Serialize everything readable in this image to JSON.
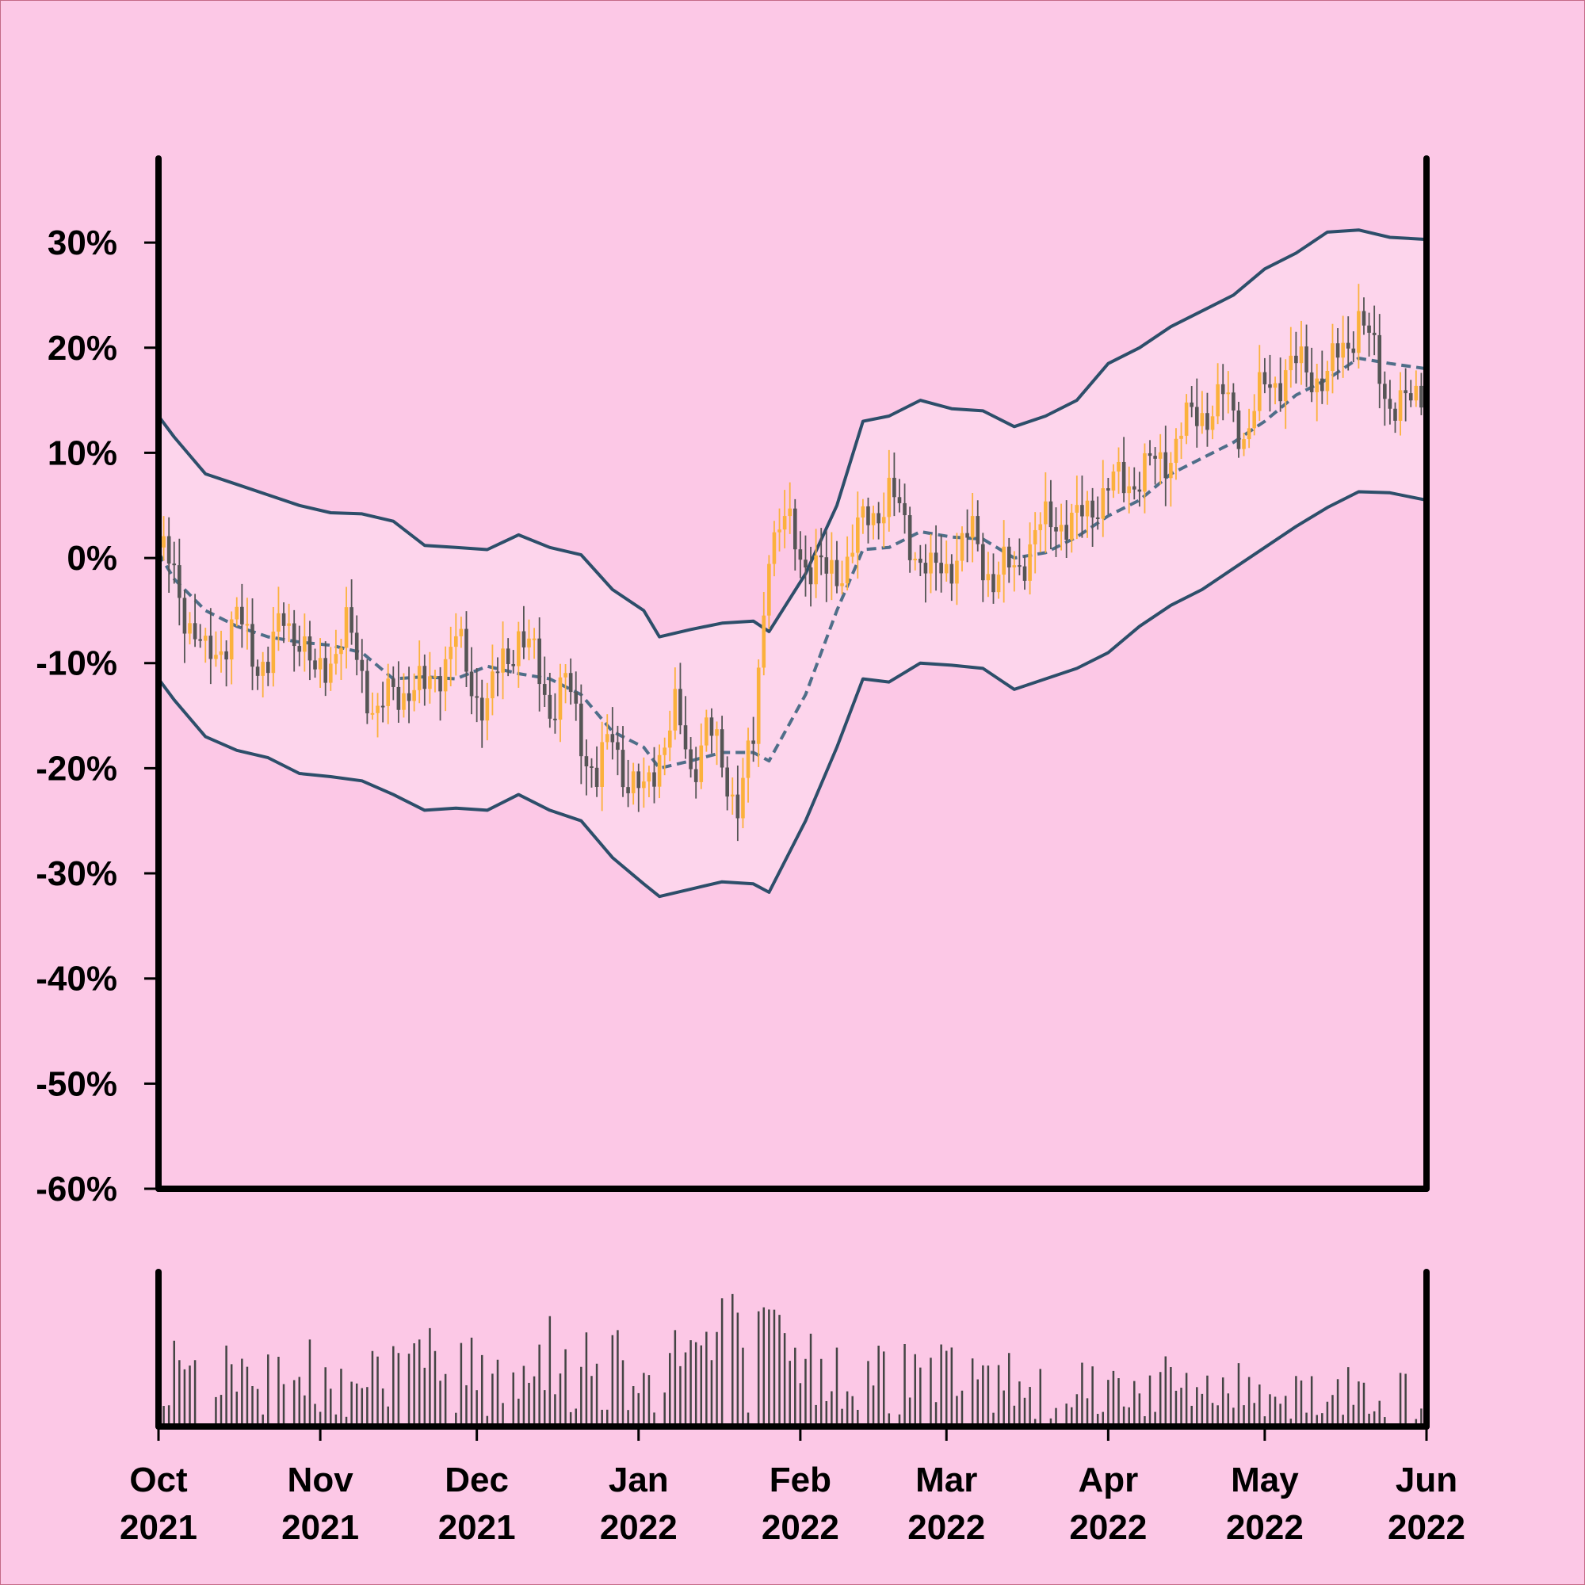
{
  "chart_data": {
    "type": "candlestick",
    "title": "",
    "xlabel": "",
    "ylabel": "",
    "x_range": [
      "2021-10-01",
      "2022-06-01"
    ],
    "ylim": [
      -60,
      38
    ],
    "y_unit": "%",
    "grid": false,
    "legend": "none",
    "y_ticks": [
      {
        "value": 30,
        "label": "30%"
      },
      {
        "value": 20,
        "label": "20%"
      },
      {
        "value": 10,
        "label": "10%"
      },
      {
        "value": 0,
        "label": "0%"
      },
      {
        "value": -10,
        "label": "-10%"
      },
      {
        "value": -20,
        "label": "-20%"
      },
      {
        "value": -30,
        "label": "-30%"
      },
      {
        "value": -40,
        "label": "-40%"
      },
      {
        "value": -50,
        "label": "-50%"
      },
      {
        "value": -60,
        "label": "-60%"
      }
    ],
    "x_ticks": [
      {
        "date": "2021-10-01",
        "month": "Oct",
        "year": "2021"
      },
      {
        "date": "2021-11-01",
        "month": "Nov",
        "year": "2021"
      },
      {
        "date": "2021-12-01",
        "month": "Dec",
        "year": "2021"
      },
      {
        "date": "2022-01-01",
        "month": "Jan",
        "year": "2022"
      },
      {
        "date": "2022-02-01",
        "month": "Feb",
        "year": "2022"
      },
      {
        "date": "2022-03-01",
        "month": "Mar",
        "year": "2022"
      },
      {
        "date": "2022-04-01",
        "month": "Apr",
        "year": "2022"
      },
      {
        "date": "2022-05-01",
        "month": "May",
        "year": "2022"
      },
      {
        "date": "2022-06-01",
        "month": "Jun",
        "year": "2022"
      }
    ],
    "close_path": [
      [
        "2021-10-01",
        1
      ],
      [
        "2021-10-04",
        -2
      ],
      [
        "2021-10-07",
        -6
      ],
      [
        "2021-10-10",
        -10
      ],
      [
        "2021-10-13",
        -8
      ],
      [
        "2021-10-16",
        -6
      ],
      [
        "2021-10-19",
        -9
      ],
      [
        "2021-10-22",
        -10
      ],
      [
        "2021-10-25",
        -6
      ],
      [
        "2021-10-28",
        -7
      ],
      [
        "2021-10-31",
        -12
      ],
      [
        "2021-11-03",
        -9
      ],
      [
        "2021-11-06",
        -7
      ],
      [
        "2021-11-09",
        -11
      ],
      [
        "2021-11-12",
        -15
      ],
      [
        "2021-11-15",
        -13
      ],
      [
        "2021-11-18",
        -12
      ],
      [
        "2021-11-21",
        -13
      ],
      [
        "2021-11-24",
        -10
      ],
      [
        "2021-11-27",
        -8
      ],
      [
        "2021-11-30",
        -12
      ],
      [
        "2021-12-03",
        -14
      ],
      [
        "2021-12-06",
        -10
      ],
      [
        "2021-12-09",
        -7
      ],
      [
        "2021-12-12",
        -10
      ],
      [
        "2021-12-15",
        -14
      ],
      [
        "2021-12-18",
        -12
      ],
      [
        "2021-12-21",
        -17
      ],
      [
        "2021-12-24",
        -21
      ],
      [
        "2021-12-27",
        -17
      ],
      [
        "2021-12-30",
        -21
      ],
      [
        "2022-01-02",
        -23
      ],
      [
        "2022-01-05",
        -18
      ],
      [
        "2022-01-08",
        -15
      ],
      [
        "2022-01-11",
        -20
      ],
      [
        "2022-01-14",
        -16
      ],
      [
        "2022-01-17",
        -20
      ],
      [
        "2022-01-20",
        -23
      ],
      [
        "2022-01-23",
        -18
      ],
      [
        "2022-01-26",
        2
      ],
      [
        "2022-01-29",
        3
      ],
      [
        "2022-02-02",
        0
      ],
      [
        "2022-02-06",
        -2
      ],
      [
        "2022-02-10",
        0
      ],
      [
        "2022-02-14",
        4
      ],
      [
        "2022-02-18",
        6
      ],
      [
        "2022-02-22",
        2
      ],
      [
        "2022-02-26",
        -2
      ],
      [
        "2022-03-02",
        0
      ],
      [
        "2022-03-06",
        2
      ],
      [
        "2022-03-10",
        -2
      ],
      [
        "2022-03-14",
        -1
      ],
      [
        "2022-03-18",
        2
      ],
      [
        "2022-03-22",
        4
      ],
      [
        "2022-03-26",
        3
      ],
      [
        "2022-03-30",
        6
      ],
      [
        "2022-04-03",
        7
      ],
      [
        "2022-04-07",
        8
      ],
      [
        "2022-04-11",
        9
      ],
      [
        "2022-04-15",
        12
      ],
      [
        "2022-04-19",
        14
      ],
      [
        "2022-04-23",
        15
      ],
      [
        "2022-04-27",
        12
      ],
      [
        "2022-05-01",
        16
      ],
      [
        "2022-05-05",
        18
      ],
      [
        "2022-05-09",
        18
      ],
      [
        "2022-05-13",
        17
      ],
      [
        "2022-05-16",
        20
      ],
      [
        "2022-05-19",
        23
      ],
      [
        "2022-05-22",
        19
      ],
      [
        "2022-05-25",
        15
      ],
      [
        "2022-05-28",
        14
      ],
      [
        "2022-06-01",
        17
      ]
    ],
    "bollinger": {
      "upper": [
        [
          "2021-10-01",
          13.5
        ],
        [
          "2021-10-04",
          11.5
        ],
        [
          "2021-10-10",
          8
        ],
        [
          "2021-10-16",
          7
        ],
        [
          "2021-10-22",
          6
        ],
        [
          "2021-10-28",
          5
        ],
        [
          "2021-11-03",
          4.3
        ],
        [
          "2021-11-09",
          4.2
        ],
        [
          "2021-11-15",
          3.5
        ],
        [
          "2021-11-21",
          1.2
        ],
        [
          "2021-11-27",
          1
        ],
        [
          "2021-12-03",
          0.8
        ],
        [
          "2021-12-09",
          2.2
        ],
        [
          "2021-12-15",
          1
        ],
        [
          "2021-12-21",
          0.3
        ],
        [
          "2021-12-27",
          -3
        ],
        [
          "2022-01-02",
          -5
        ],
        [
          "2022-01-05",
          -7.5
        ],
        [
          "2022-01-11",
          -6.8
        ],
        [
          "2022-01-17",
          -6.2
        ],
        [
          "2022-01-23",
          -6
        ],
        [
          "2022-01-26",
          -7
        ],
        [
          "2022-02-02",
          -1.5
        ],
        [
          "2022-02-08",
          5
        ],
        [
          "2022-02-13",
          13
        ],
        [
          "2022-02-18",
          13.5
        ],
        [
          "2022-02-24",
          15
        ],
        [
          "2022-03-02",
          14.2
        ],
        [
          "2022-03-08",
          14
        ],
        [
          "2022-03-14",
          12.5
        ],
        [
          "2022-03-20",
          13.5
        ],
        [
          "2022-03-26",
          15
        ],
        [
          "2022-04-01",
          18.5
        ],
        [
          "2022-04-07",
          20
        ],
        [
          "2022-04-13",
          22
        ],
        [
          "2022-04-19",
          23.5
        ],
        [
          "2022-04-25",
          25
        ],
        [
          "2022-05-01",
          27.5
        ],
        [
          "2022-05-07",
          29
        ],
        [
          "2022-05-13",
          31
        ],
        [
          "2022-05-19",
          31.2
        ],
        [
          "2022-05-25",
          30.5
        ],
        [
          "2022-06-01",
          30.3
        ]
      ],
      "middle": [
        [
          "2021-10-01",
          0.5
        ],
        [
          "2021-10-04",
          -2
        ],
        [
          "2021-10-10",
          -5
        ],
        [
          "2021-10-16",
          -6.5
        ],
        [
          "2021-10-22",
          -7.5
        ],
        [
          "2021-10-28",
          -8
        ],
        [
          "2021-11-03",
          -8.3
        ],
        [
          "2021-11-09",
          -9
        ],
        [
          "2021-11-15",
          -11.5
        ],
        [
          "2021-11-21",
          -11.3
        ],
        [
          "2021-11-27",
          -11.5
        ],
        [
          "2021-12-03",
          -10.3
        ],
        [
          "2021-12-09",
          -11
        ],
        [
          "2021-12-15",
          -11.5
        ],
        [
          "2021-12-21",
          -13
        ],
        [
          "2021-12-27",
          -16.5
        ],
        [
          "2022-01-02",
          -18
        ],
        [
          "2022-01-05",
          -20
        ],
        [
          "2022-01-11",
          -19.3
        ],
        [
          "2022-01-17",
          -18.5
        ],
        [
          "2022-01-23",
          -18.5
        ],
        [
          "2022-01-26",
          -19.3
        ],
        [
          "2022-02-02",
          -13
        ],
        [
          "2022-02-08",
          -5
        ],
        [
          "2022-02-13",
          0.8
        ],
        [
          "2022-02-18",
          1
        ],
        [
          "2022-02-24",
          2.5
        ],
        [
          "2022-03-02",
          2
        ],
        [
          "2022-03-08",
          1.8
        ],
        [
          "2022-03-14",
          0
        ],
        [
          "2022-03-20",
          0.5
        ],
        [
          "2022-03-26",
          2
        ],
        [
          "2022-04-01",
          4
        ],
        [
          "2022-04-07",
          5.5
        ],
        [
          "2022-04-13",
          8
        ],
        [
          "2022-04-19",
          9.5
        ],
        [
          "2022-04-25",
          11
        ],
        [
          "2022-05-01",
          13
        ],
        [
          "2022-05-07",
          15.5
        ],
        [
          "2022-05-13",
          17
        ],
        [
          "2022-05-19",
          19
        ],
        [
          "2022-05-25",
          18.5
        ],
        [
          "2022-06-01",
          18
        ]
      ],
      "lower": [
        [
          "2021-10-01",
          -11.5
        ],
        [
          "2021-10-04",
          -13.5
        ],
        [
          "2021-10-10",
          -17
        ],
        [
          "2021-10-16",
          -18.3
        ],
        [
          "2021-10-22",
          -19
        ],
        [
          "2021-10-28",
          -20.5
        ],
        [
          "2021-11-03",
          -20.8
        ],
        [
          "2021-11-09",
          -21.2
        ],
        [
          "2021-11-15",
          -22.5
        ],
        [
          "2021-11-21",
          -24
        ],
        [
          "2021-11-27",
          -23.8
        ],
        [
          "2021-12-03",
          -24
        ],
        [
          "2021-12-09",
          -22.5
        ],
        [
          "2021-12-15",
          -24
        ],
        [
          "2021-12-21",
          -25
        ],
        [
          "2021-12-27",
          -28.5
        ],
        [
          "2022-01-02",
          -31
        ],
        [
          "2022-01-05",
          -32.2
        ],
        [
          "2022-01-11",
          -31.5
        ],
        [
          "2022-01-17",
          -30.8
        ],
        [
          "2022-01-23",
          -31
        ],
        [
          "2022-01-26",
          -31.8
        ],
        [
          "2022-02-02",
          -25
        ],
        [
          "2022-02-08",
          -18
        ],
        [
          "2022-02-13",
          -11.5
        ],
        [
          "2022-02-18",
          -11.8
        ],
        [
          "2022-02-24",
          -10
        ],
        [
          "2022-03-02",
          -10.2
        ],
        [
          "2022-03-08",
          -10.5
        ],
        [
          "2022-03-14",
          -12.5
        ],
        [
          "2022-03-20",
          -11.5
        ],
        [
          "2022-03-26",
          -10.5
        ],
        [
          "2022-04-01",
          -9
        ],
        [
          "2022-04-07",
          -6.5
        ],
        [
          "2022-04-13",
          -4.5
        ],
        [
          "2022-04-19",
          -3
        ],
        [
          "2022-04-25",
          -1
        ],
        [
          "2022-05-01",
          1
        ],
        [
          "2022-05-07",
          3
        ],
        [
          "2022-05-13",
          4.8
        ],
        [
          "2022-05-19",
          6.3
        ],
        [
          "2022-05-25",
          6.2
        ],
        [
          "2022-06-01",
          5.5
        ]
      ]
    },
    "volume": {
      "ymax": 100,
      "seed": 7,
      "envelope": [
        [
          "2021-10-01",
          35
        ],
        [
          "2021-11-01",
          38
        ],
        [
          "2021-12-01",
          45
        ],
        [
          "2022-01-01",
          48
        ],
        [
          "2022-01-20",
          62
        ],
        [
          "2022-02-01",
          40
        ],
        [
          "2022-03-01",
          35
        ],
        [
          "2022-04-01",
          30
        ],
        [
          "2022-05-01",
          26
        ],
        [
          "2022-06-01",
          24
        ]
      ]
    },
    "colors": {
      "background": "#fcc8e6",
      "band_fill": "#fdd5ec",
      "band_line": "#2d4e6a",
      "middle_line": "#4f6e89",
      "up_candle": "#fbb13c",
      "down_candle": "#555555",
      "volume_bar": "#444444",
      "axis": "#000000"
    }
  }
}
